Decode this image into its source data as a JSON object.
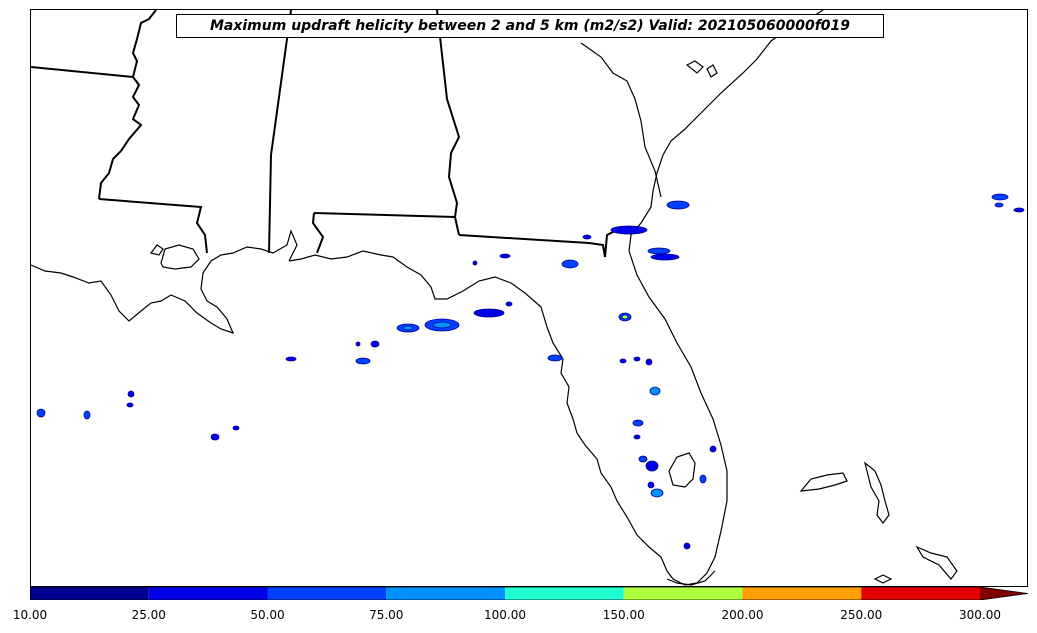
{
  "title": "Maximum updraft helicity between 2 and 5 km (m2/s2) Valid: 202105060000f019",
  "colorbar": {
    "levels": [
      "10.00",
      "25.00",
      "50.00",
      "75.00",
      "100.00",
      "150.00",
      "200.00",
      "250.00",
      "300.00"
    ],
    "colors": [
      "#00008f",
      "#0000e8",
      "#0040ff",
      "#0090ff",
      "#20ffd0",
      "#b0ff40",
      "#ffa000",
      "#e00000",
      "#800000"
    ],
    "extend": "max"
  },
  "map": {
    "region": "Southeastern United States / Gulf of Mexico",
    "features": [
      "state-borders",
      "coastlines"
    ]
  }
}
